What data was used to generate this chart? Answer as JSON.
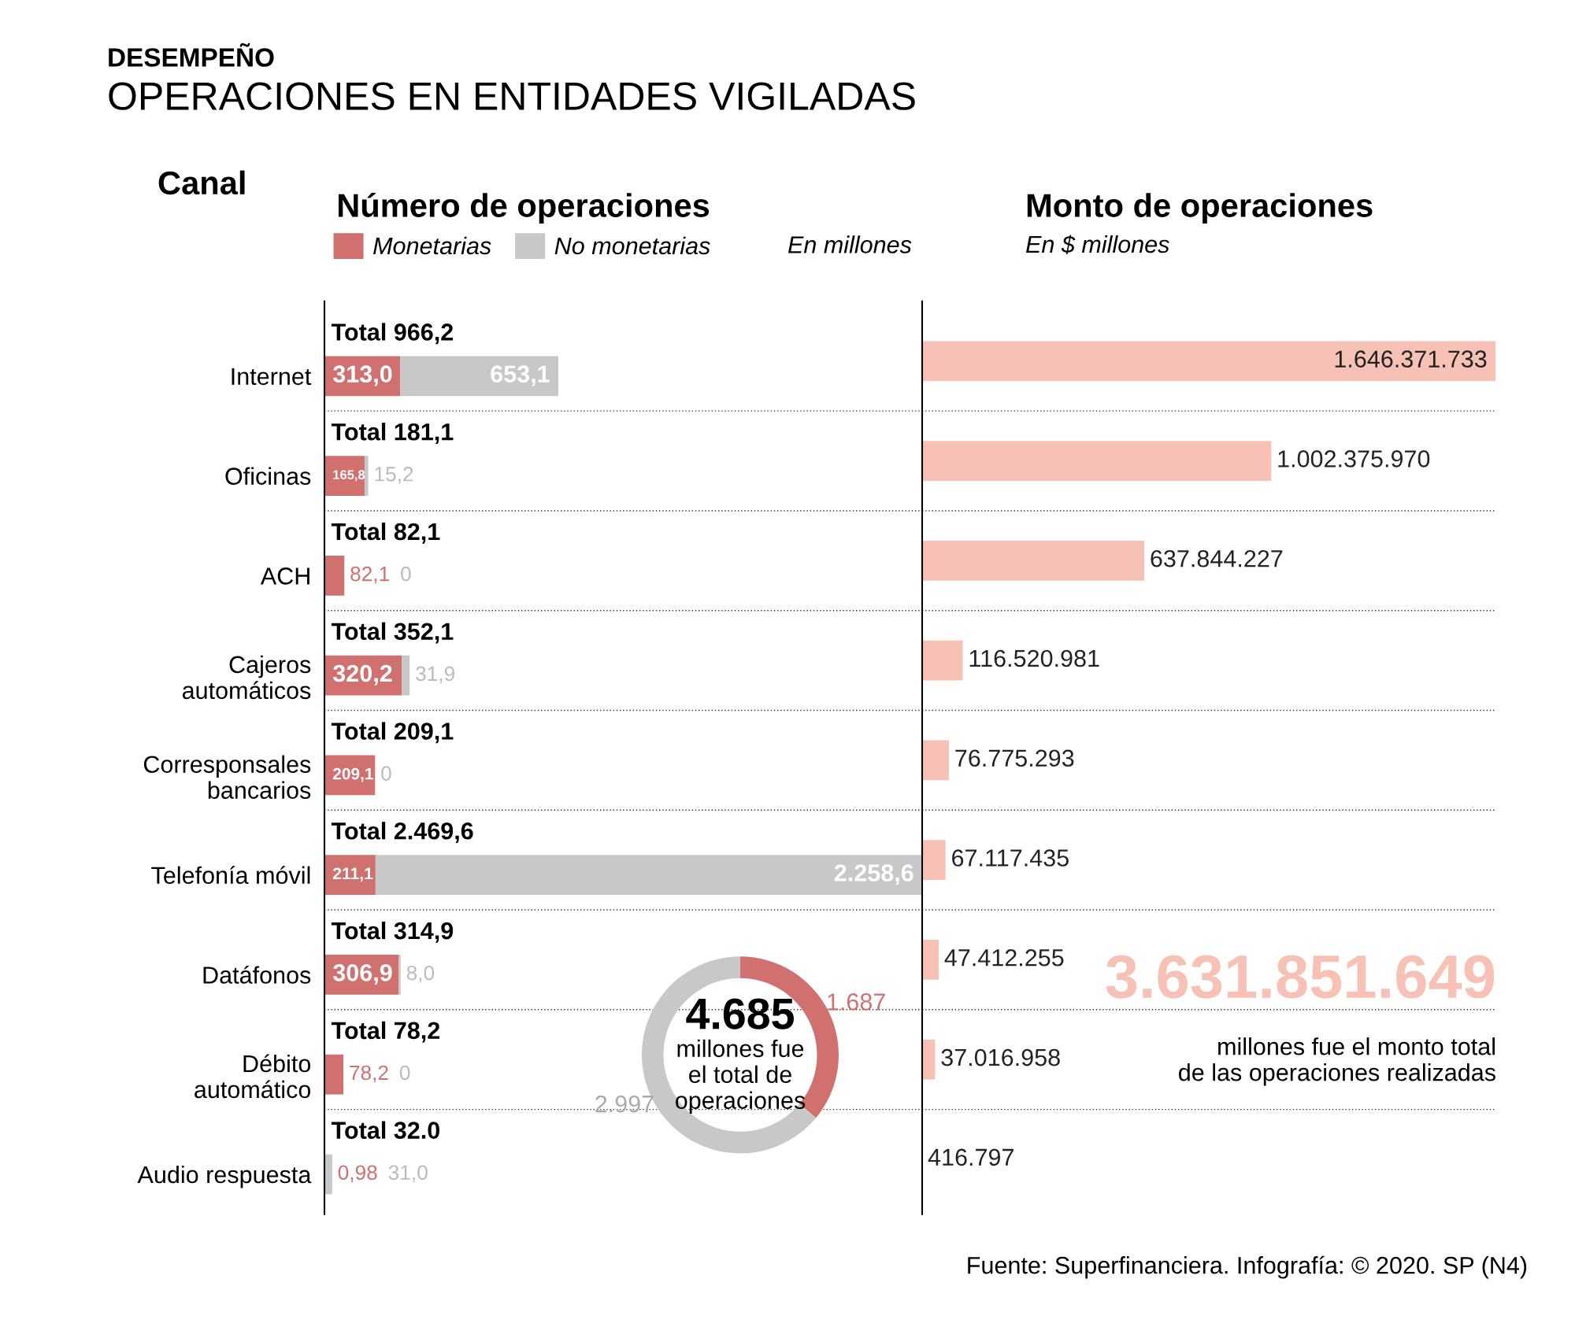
{
  "chart_data": [
    {
      "type": "bar",
      "orientation": "horizontal",
      "stacked": true,
      "title": "Número de operaciones",
      "legend": "top",
      "tick_labels": "y",
      "categories": [
        "Internet",
        "Oficinas",
        "ACH",
        "Cajeros\nautomáticos",
        "Corresponsales\nbancarios",
        "Telefonía móvil",
        "Datáfonos",
        "Débito\nautomático",
        "Audio respuesta"
      ],
      "series": [
        {
          "name": "Monetarias",
          "color": "#d0706f",
          "values": [
            313.0,
            165.8,
            82.1,
            320.2,
            209.1,
            211.1,
            306.9,
            78.2,
            0.98
          ],
          "value_labels": [
            "313,0",
            "165,8",
            "82,1",
            "320,2",
            "209,1",
            "211,1",
            "306,9",
            "78,2",
            "0,98"
          ]
        },
        {
          "name": "No monetarias",
          "color": "#c8c8ca",
          "values": [
            653.1,
            15.2,
            0,
            31.9,
            0,
            2258.6,
            8.0,
            0,
            31.0
          ],
          "value_labels": [
            "653,1",
            "15,2",
            "0",
            "31,9",
            "0",
            "2.258,6",
            "8,0",
            "0",
            "31,0"
          ]
        }
      ],
      "totals": [
        "Total 966,2",
        "Total 181,1",
        "Total 82,1",
        "Total 352,1",
        "Total 209,1",
        "Total 2.469,6",
        "Total 314,9",
        "Total 78,2",
        "Total 32.0"
      ],
      "annotations": [
        "DESEMPEÑO",
        "OPERACIONES EN ENTIDADES VIGILADAS",
        "Canal",
        "En millones",
        "Fuente: Superfinanciera. Infografía: © 2020. SP (N4)"
      ]
    },
    {
      "type": "bar",
      "orientation": "horizontal",
      "title": "Monto de operaciones",
      "subtitle": "En $ millones",
      "tick_labels": false,
      "categories": [
        null,
        null,
        null,
        null,
        null,
        null,
        null,
        null,
        null
      ],
      "values": [
        1646371733,
        1002375970,
        637844227,
        116520981,
        76775293,
        67117435,
        47412255,
        37016958,
        416797
      ],
      "color": "#f7c2b5",
      "value_labels": [
        "1.646.371.733",
        "1.002.375.970",
        "637.844.227",
        "116.520.981",
        "76.775.293",
        "67.117.435",
        "47.412.255",
        "37.016.958",
        "416.797"
      ],
      "annotations": [
        "3.631.851.649",
        "millones fue el monto total\nde las operaciones realizadas"
      ]
    },
    {
      "type": "donut",
      "categories": [
        null,
        null
      ],
      "values": [
        1687,
        2997
      ],
      "colors": [
        "#d0706f",
        "#c8c8ca"
      ],
      "value_labels": [
        "1.687",
        "2.997"
      ],
      "annotations": [
        "4.685",
        "millones fue\nel total de\noperaciones"
      ]
    }
  ]
}
